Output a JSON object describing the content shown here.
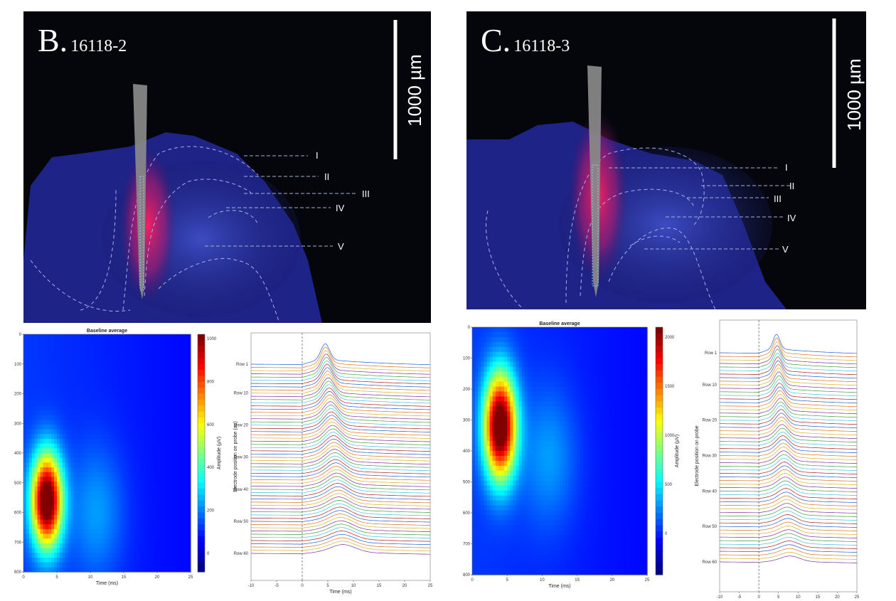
{
  "panels": [
    {
      "letter": "B.",
      "sample_id": "16118-2",
      "scale_bar": "1000 µm",
      "layers": [
        "I",
        "II",
        "III",
        "IV",
        "V"
      ]
    },
    {
      "letter": "C.",
      "sample_id": "16118-3",
      "scale_bar": "1000 µm",
      "layers": [
        "I",
        "II",
        "III",
        "IV",
        "V"
      ]
    }
  ],
  "chart_data": [
    {
      "type": "heatmap",
      "panel": "B",
      "title": "Baseline average",
      "xlabel": "Time (ms)",
      "ylabel": "",
      "x_ticks": [
        "0",
        "5",
        "10",
        "15",
        "20",
        "25"
      ],
      "y_ticks": [
        "0",
        "100",
        "200",
        "300",
        "400",
        "500",
        "600",
        "700",
        "800"
      ],
      "xlim": [
        0,
        25
      ],
      "ylim": [
        0,
        800
      ],
      "colorbar_label": "Amplitude (µV)",
      "colorbar_ticks": [
        "1000",
        "800",
        "600",
        "400",
        "200",
        "0"
      ],
      "peak": {
        "time_ms": 3.5,
        "depth": 560
      }
    },
    {
      "type": "line",
      "panel": "B",
      "xlabel": "Time (ms)",
      "ylabel": "Electrode position on probe (au)",
      "x_ticks": [
        "-10",
        "-5",
        "0",
        "5",
        "10",
        "15",
        "20",
        "25"
      ],
      "xlim": [
        -10,
        25
      ],
      "row_ticks": [
        "Row 1",
        "Row 10",
        "Row 20",
        "Row 30",
        "Row 40",
        "Row 50",
        "Row 60"
      ],
      "n_traces": 60,
      "stimulus_time_ms": 0
    },
    {
      "type": "heatmap",
      "panel": "C",
      "title": "Baseline average",
      "xlabel": "Time (ms)",
      "ylabel": "",
      "x_ticks": [
        "0",
        "5",
        "10",
        "15",
        "20",
        "25"
      ],
      "y_ticks": [
        "0",
        "100",
        "200",
        "300",
        "400",
        "500",
        "600",
        "700",
        "800"
      ],
      "xlim": [
        0,
        25
      ],
      "ylim": [
        0,
        800
      ],
      "colorbar_label": "Amplitude (µV)",
      "colorbar_ticks": [
        "2000",
        "1500",
        "1000",
        "500",
        "0"
      ],
      "peak": {
        "time_ms": 4,
        "depth": 320
      }
    },
    {
      "type": "line",
      "panel": "C",
      "xlabel": "",
      "ylabel": "Electrode position on probe",
      "x_ticks": [
        "-10",
        "-5",
        "0",
        "5",
        "10",
        "15",
        "20",
        "25"
      ],
      "xlim": [
        -10,
        25
      ],
      "row_ticks": [
        "Row 1",
        "Row 10",
        "Row 20",
        "Row 30",
        "Row 40",
        "Row 50",
        "Row 60"
      ],
      "n_traces": 60,
      "stimulus_time_ms": 0
    }
  ]
}
